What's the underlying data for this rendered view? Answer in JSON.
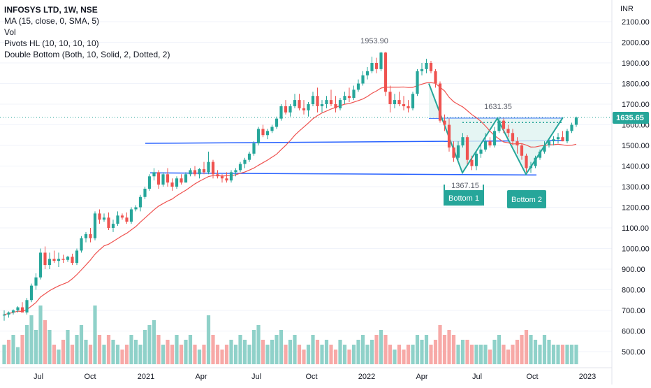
{
  "legend": {
    "title": "INFOSYS LTD, 1W, NSE",
    "ma": "MA (15, close, 0, SMA, 5)",
    "vol": "Vol",
    "pivots": "Pivots HL (10, 10, 10, 10)",
    "double_bottom": "Double Bottom (Both, 10, Solid, 2, Dotted, 2)"
  },
  "price_axis": {
    "currency": "INR",
    "ticks": [
      "2100.00",
      "2000.00",
      "1900.00",
      "1800.00",
      "1700.00",
      "1600.00",
      "1500.00",
      "1400.00",
      "1300.00",
      "1200.00",
      "1100.00",
      "1000.00",
      "900.00",
      "800.00",
      "700.00",
      "600.00",
      "500.00"
    ]
  },
  "time_axis": {
    "labels": [
      "Jul",
      "Oct",
      "2021",
      "Apr",
      "Jul",
      "Oct",
      "2022",
      "Apr",
      "Jul",
      "Oct",
      "2023"
    ]
  },
  "annotations": {
    "high": "1953.90",
    "neckline": "1631.35",
    "low": "1367.15",
    "last_price": "1635.65",
    "bottom1": "Bottom 1",
    "bottom2": "Bottom 2"
  },
  "colors": {
    "up": "#26a69a",
    "down": "#ef5350",
    "vol_up": "#8fd1c9",
    "vol_down": "#f7a9a7",
    "ma": "#ef5350",
    "line": "#2962ff",
    "pattern": "#26a69a",
    "pattern_fill": "#dff3f0"
  },
  "chart_data": {
    "type": "candlestick",
    "symbol": "INFOSYS LTD",
    "interval": "1W",
    "exchange": "NSE",
    "y_axis": "INR",
    "ylim": [
      450,
      2150
    ],
    "candles": [
      [
        675,
        700,
        650,
        680
      ],
      [
        680,
        695,
        665,
        690
      ],
      [
        690,
        705,
        680,
        700
      ],
      [
        700,
        720,
        690,
        715
      ],
      [
        715,
        740,
        700,
        690
      ],
      [
        690,
        760,
        680,
        750
      ],
      [
        750,
        830,
        740,
        820
      ],
      [
        820,
        880,
        800,
        860
      ],
      [
        860,
        1000,
        850,
        980
      ],
      [
        980,
        1010,
        900,
        920
      ],
      [
        920,
        980,
        900,
        950
      ],
      [
        950,
        990,
        930,
        940
      ],
      [
        940,
        980,
        910,
        950
      ],
      [
        950,
        970,
        930,
        945
      ],
      [
        945,
        965,
        935,
        960
      ],
      [
        960,
        975,
        920,
        930
      ],
      [
        930,
        1000,
        920,
        990
      ],
      [
        990,
        1060,
        980,
        1050
      ],
      [
        1050,
        1080,
        1030,
        1070
      ],
      [
        1070,
        1100,
        1030,
        1050
      ],
      [
        1050,
        1180,
        1040,
        1170
      ],
      [
        1170,
        1190,
        1120,
        1140
      ],
      [
        1140,
        1170,
        1130,
        1150
      ],
      [
        1150,
        1175,
        1090,
        1100
      ],
      [
        1100,
        1140,
        1080,
        1120
      ],
      [
        1120,
        1180,
        1110,
        1160
      ],
      [
        1160,
        1170,
        1140,
        1150
      ],
      [
        1150,
        1175,
        1120,
        1130
      ],
      [
        1130,
        1200,
        1120,
        1190
      ],
      [
        1190,
        1210,
        1180,
        1200
      ],
      [
        1200,
        1260,
        1180,
        1250
      ],
      [
        1250,
        1300,
        1240,
        1290
      ],
      [
        1290,
        1360,
        1280,
        1350
      ],
      [
        1350,
        1390,
        1330,
        1370
      ],
      [
        1370,
        1380,
        1290,
        1310
      ],
      [
        1310,
        1370,
        1300,
        1360
      ],
      [
        1360,
        1390,
        1300,
        1320
      ],
      [
        1320,
        1340,
        1280,
        1300
      ],
      [
        1300,
        1350,
        1290,
        1340
      ],
      [
        1340,
        1360,
        1310,
        1320
      ],
      [
        1320,
        1370,
        1320,
        1360
      ],
      [
        1360,
        1390,
        1350,
        1380
      ],
      [
        1380,
        1400,
        1350,
        1360
      ],
      [
        1360,
        1390,
        1340,
        1385
      ],
      [
        1385,
        1420,
        1360,
        1370
      ],
      [
        1370,
        1470,
        1360,
        1420
      ],
      [
        1420,
        1430,
        1340,
        1360
      ],
      [
        1360,
        1380,
        1340,
        1350
      ],
      [
        1350,
        1360,
        1320,
        1340
      ],
      [
        1340,
        1370,
        1320,
        1330
      ],
      [
        1330,
        1380,
        1320,
        1370
      ],
      [
        1370,
        1390,
        1350,
        1380
      ],
      [
        1380,
        1420,
        1370,
        1410
      ],
      [
        1410,
        1440,
        1390,
        1430
      ],
      [
        1430,
        1470,
        1420,
        1460
      ],
      [
        1460,
        1520,
        1450,
        1510
      ],
      [
        1510,
        1590,
        1500,
        1580
      ],
      [
        1580,
        1600,
        1540,
        1550
      ],
      [
        1550,
        1580,
        1530,
        1570
      ],
      [
        1570,
        1600,
        1560,
        1590
      ],
      [
        1590,
        1640,
        1580,
        1630
      ],
      [
        1630,
        1700,
        1620,
        1690
      ],
      [
        1690,
        1720,
        1650,
        1660
      ],
      [
        1660,
        1700,
        1640,
        1690
      ],
      [
        1690,
        1750,
        1680,
        1720
      ],
      [
        1720,
        1750,
        1670,
        1680
      ],
      [
        1680,
        1720,
        1650,
        1670
      ],
      [
        1670,
        1710,
        1640,
        1700
      ],
      [
        1700,
        1760,
        1690,
        1740
      ],
      [
        1740,
        1780,
        1660,
        1690
      ],
      [
        1690,
        1720,
        1660,
        1700
      ],
      [
        1700,
        1740,
        1680,
        1720
      ],
      [
        1720,
        1770,
        1690,
        1700
      ],
      [
        1700,
        1740,
        1660,
        1680
      ],
      [
        1680,
        1730,
        1670,
        1720
      ],
      [
        1720,
        1760,
        1700,
        1740
      ],
      [
        1740,
        1780,
        1710,
        1730
      ],
      [
        1730,
        1790,
        1720,
        1770
      ],
      [
        1770,
        1820,
        1760,
        1800
      ],
      [
        1800,
        1860,
        1790,
        1840
      ],
      [
        1840,
        1880,
        1820,
        1860
      ],
      [
        1860,
        1930,
        1850,
        1900
      ],
      [
        1900,
        1925,
        1850,
        1870
      ],
      [
        1870,
        1954,
        1860,
        1950
      ],
      [
        1950,
        1954,
        1740,
        1760
      ],
      [
        1760,
        1790,
        1660,
        1700
      ],
      [
        1700,
        1750,
        1680,
        1720
      ],
      [
        1720,
        1760,
        1690,
        1700
      ],
      [
        1700,
        1740,
        1670,
        1690
      ],
      [
        1690,
        1720,
        1660,
        1680
      ],
      [
        1680,
        1760,
        1670,
        1750
      ],
      [
        1750,
        1870,
        1740,
        1860
      ],
      [
        1860,
        1900,
        1840,
        1870
      ],
      [
        1870,
        1920,
        1850,
        1900
      ],
      [
        1900,
        1910,
        1850,
        1860
      ],
      [
        1860,
        1870,
        1780,
        1800
      ],
      [
        1800,
        1810,
        1610,
        1620
      ],
      [
        1620,
        1650,
        1570,
        1600
      ],
      [
        1600,
        1630,
        1470,
        1490
      ],
      [
        1490,
        1520,
        1420,
        1440
      ],
      [
        1440,
        1520,
        1430,
        1500
      ],
      [
        1500,
        1560,
        1490,
        1540
      ],
      [
        1540,
        1550,
        1410,
        1430
      ],
      [
        1430,
        1450,
        1380,
        1400
      ],
      [
        1400,
        1470,
        1380,
        1460
      ],
      [
        1460,
        1500,
        1440,
        1480
      ],
      [
        1480,
        1560,
        1470,
        1520
      ],
      [
        1520,
        1540,
        1490,
        1500
      ],
      [
        1500,
        1590,
        1490,
        1570
      ],
      [
        1570,
        1640,
        1560,
        1620
      ],
      [
        1620,
        1631,
        1560,
        1580
      ],
      [
        1580,
        1600,
        1540,
        1560
      ],
      [
        1560,
        1580,
        1500,
        1520
      ],
      [
        1520,
        1540,
        1460,
        1500
      ],
      [
        1500,
        1510,
        1430,
        1450
      ],
      [
        1450,
        1460,
        1370,
        1390
      ],
      [
        1390,
        1420,
        1367,
        1400
      ],
      [
        1400,
        1450,
        1390,
        1440
      ],
      [
        1440,
        1480,
        1430,
        1470
      ],
      [
        1470,
        1520,
        1460,
        1500
      ],
      [
        1500,
        1530,
        1490,
        1520
      ],
      [
        1520,
        1545,
        1500,
        1530
      ],
      [
        1530,
        1560,
        1510,
        1540
      ],
      [
        1540,
        1570,
        1520,
        1520
      ],
      [
        1520,
        1580,
        1510,
        1570
      ],
      [
        1570,
        1610,
        1560,
        1600
      ],
      [
        1600,
        1640,
        1590,
        1635.65
      ]
    ],
    "volume": [
      [
        560,
        1
      ],
      [
        580,
        0
      ],
      [
        600,
        1
      ],
      [
        550,
        1
      ],
      [
        600,
        0
      ],
      [
        640,
        1
      ],
      [
        680,
        1
      ],
      [
        620,
        1
      ],
      [
        720,
        1
      ],
      [
        660,
        0
      ],
      [
        620,
        1
      ],
      [
        560,
        0
      ],
      [
        540,
        1
      ],
      [
        580,
        0
      ],
      [
        620,
        1
      ],
      [
        560,
        0
      ],
      [
        600,
        1
      ],
      [
        640,
        1
      ],
      [
        580,
        1
      ],
      [
        560,
        0
      ],
      [
        720,
        1
      ],
      [
        600,
        0
      ],
      [
        560,
        1
      ],
      [
        600,
        0
      ],
      [
        580,
        1
      ],
      [
        560,
        1
      ],
      [
        540,
        0
      ],
      [
        560,
        0
      ],
      [
        600,
        1
      ],
      [
        580,
        1
      ],
      [
        560,
        1
      ],
      [
        620,
        1
      ],
      [
        640,
        1
      ],
      [
        660,
        1
      ],
      [
        600,
        0
      ],
      [
        560,
        1
      ],
      [
        580,
        0
      ],
      [
        560,
        0
      ],
      [
        600,
        1
      ],
      [
        560,
        0
      ],
      [
        580,
        1
      ],
      [
        600,
        1
      ],
      [
        560,
        0
      ],
      [
        540,
        1
      ],
      [
        560,
        0
      ],
      [
        680,
        1
      ],
      [
        600,
        0
      ],
      [
        560,
        0
      ],
      [
        540,
        0
      ],
      [
        560,
        0
      ],
      [
        580,
        1
      ],
      [
        560,
        1
      ],
      [
        600,
        1
      ],
      [
        580,
        1
      ],
      [
        560,
        1
      ],
      [
        620,
        1
      ],
      [
        640,
        1
      ],
      [
        580,
        0
      ],
      [
        560,
        1
      ],
      [
        580,
        1
      ],
      [
        600,
        1
      ],
      [
        620,
        1
      ],
      [
        560,
        0
      ],
      [
        580,
        1
      ],
      [
        600,
        1
      ],
      [
        560,
        0
      ],
      [
        540,
        0
      ],
      [
        560,
        1
      ],
      [
        600,
        1
      ],
      [
        580,
        0
      ],
      [
        560,
        1
      ],
      [
        580,
        1
      ],
      [
        560,
        0
      ],
      [
        540,
        0
      ],
      [
        580,
        1
      ],
      [
        560,
        1
      ],
      [
        540,
        0
      ],
      [
        560,
        1
      ],
      [
        580,
        1
      ],
      [
        600,
        1
      ],
      [
        560,
        1
      ],
      [
        580,
        1
      ],
      [
        600,
        0
      ],
      [
        620,
        1
      ],
      [
        600,
        0
      ],
      [
        560,
        0
      ],
      [
        540,
        1
      ],
      [
        560,
        0
      ],
      [
        540,
        0
      ],
      [
        560,
        0
      ],
      [
        560,
        1
      ],
      [
        600,
        1
      ],
      [
        580,
        1
      ],
      [
        600,
        1
      ],
      [
        560,
        0
      ],
      [
        580,
        0
      ],
      [
        640,
        0
      ],
      [
        600,
        0
      ],
      [
        620,
        0
      ],
      [
        600,
        0
      ],
      [
        560,
        1
      ],
      [
        580,
        1
      ],
      [
        580,
        0
      ],
      [
        560,
        0
      ],
      [
        560,
        1
      ],
      [
        560,
        1
      ],
      [
        560,
        1
      ],
      [
        540,
        0
      ],
      [
        580,
        1
      ],
      [
        600,
        1
      ],
      [
        560,
        0
      ],
      [
        540,
        0
      ],
      [
        560,
        0
      ],
      [
        580,
        0
      ],
      [
        600,
        0
      ],
      [
        620,
        0
      ],
      [
        600,
        1
      ],
      [
        580,
        1
      ],
      [
        560,
        1
      ],
      [
        600,
        1
      ],
      [
        580,
        1
      ],
      [
        560,
        1
      ],
      [
        560,
        1
      ],
      [
        560,
        0
      ],
      [
        560,
        1
      ],
      [
        560,
        1
      ],
      [
        560,
        1
      ]
    ],
    "volume_scale_note": "",
    "moving_average": {
      "period": 15,
      "source": "close"
    },
    "pattern": {
      "type": "double_bottom",
      "high": 1953.9,
      "neckline": 1631.35,
      "low": 1367.15,
      "last_close": 1635.65,
      "bottoms": [
        "Bottom 1",
        "Bottom 2"
      ],
      "support_line": 1360,
      "mid_line": 1510
    },
    "x_labels": [
      "Jul",
      "Oct",
      "2021",
      "Apr",
      "Jul",
      "Oct",
      "2022",
      "Apr",
      "Jul",
      "Oct",
      "2023"
    ]
  }
}
